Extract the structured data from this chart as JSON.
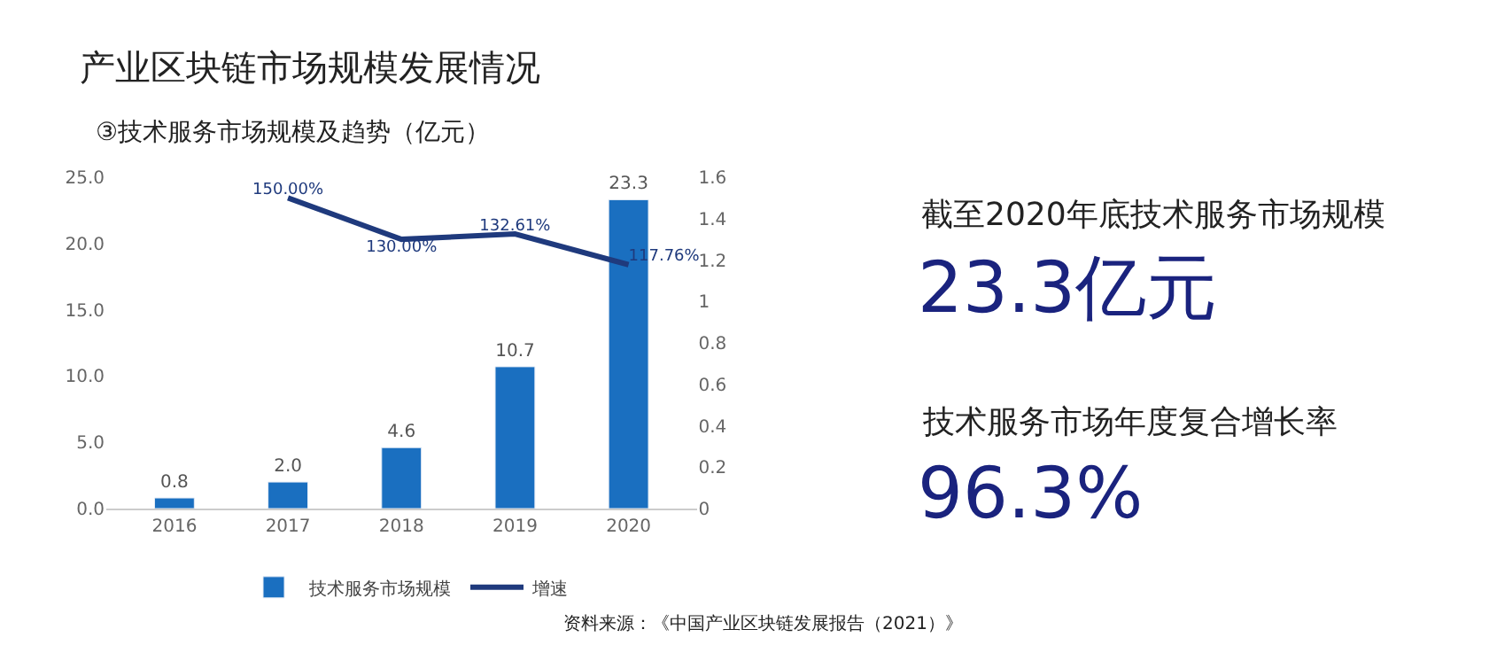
{
  "chart_data": {
    "type": "bar",
    "title": "产业区块链市场规模发展情况",
    "subtitle": "③技术服务市场规模及趋势（亿元）",
    "categories": [
      "2016",
      "2017",
      "2018",
      "2019",
      "2020"
    ],
    "series": [
      {
        "name": "技术服务市场规模",
        "color": "#1a6fc0",
        "values": [
          0.8,
          2.0,
          4.6,
          10.7,
          23.3
        ],
        "value_labels": [
          "0.8",
          "2.0",
          "4.6",
          "10.7",
          "23.3"
        ]
      },
      {
        "name": "增速",
        "type": "line",
        "axis": "y2",
        "color": "#1f3a7d",
        "values": [
          null,
          1.5,
          1.3,
          1.3261,
          1.1776
        ],
        "value_labels": [
          null,
          "150.00%",
          "130.00%",
          "132.61%",
          "117.76%"
        ]
      }
    ],
    "ylim": [
      0,
      25
    ],
    "yticks": [
      {
        "value": 0,
        "label": "0.0"
      },
      {
        "value": 5,
        "label": "5.0"
      },
      {
        "value": 10,
        "label": "10.0"
      },
      {
        "value": 15,
        "label": "15.0"
      },
      {
        "value": 20,
        "label": "20.0"
      },
      {
        "value": 25,
        "label": "25.0"
      }
    ],
    "y2lim": [
      0,
      1.6
    ],
    "y2ticks": [
      0,
      0.2,
      0.4,
      0.6,
      0.8,
      1,
      1.2,
      1.4,
      1.6
    ],
    "legend": "bottom",
    "line_style": "solid",
    "marker": "none",
    "annotations": [
      "截至2020年底技术服务市场规模",
      "23.3亿元",
      "技术服务市场年度复合增长率",
      "96.3%",
      "资料来源：《中国产业区块链发展报告（2021）》"
    ]
  }
}
